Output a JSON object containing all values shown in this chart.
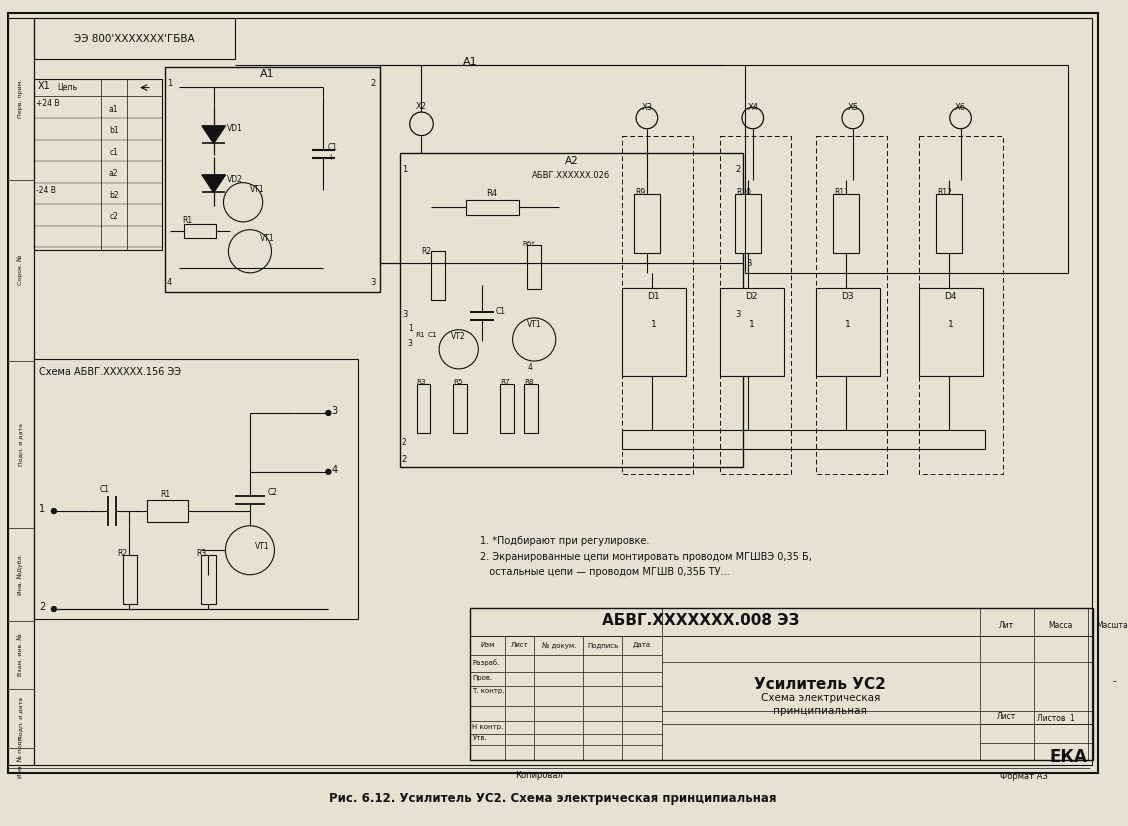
{
  "caption": "Рис. 6.12. Усилитель УС2. Схема электрическая принципиальная",
  "title_doc_number": "АБВГ.XXXXXXX.008 ЭЗ",
  "title_product": "Усилитель УС2",
  "title_doc_type_line1": "Схема электрическая",
  "title_doc_type_line2": "принципиальная",
  "title_company": "ЕКА",
  "title_lit": "Лит",
  "title_massa": "Масса",
  "title_masshtab_label": "Масштаб",
  "title_masshtab_val": "-",
  "title_list": "Лист",
  "title_listov": "Листов  1",
  "title_copied": "Копировал",
  "title_format": "Формат А3",
  "title_izm": "Изм",
  "title_list2": "Лист",
  "title_ndoc": "№ докум.",
  "title_podpis": "Подпись",
  "title_data": "Дата",
  "title_razrab": "Разраб.",
  "title_prov": "Пров.",
  "title_tkont": "Т. контр.",
  "title_nkont": "Н контр.",
  "title_utv": "Утв.",
  "schema_label": "Схема АБВГ.XXXXXX.156 ЭЭ",
  "top_stamp": "ЭЭ 800'XXXXXXX'ГБВА",
  "note1": "1. *Подбирают при регулировке.",
  "note2": "2. Экранированные цепи монтировать проводом МГШВЭ 0,35 Б,",
  "note3": "   остальные цепи — проводом МГШВ 0,35Б ТУ...",
  "bg_color": "#e8e0d0",
  "line_color": "#111111"
}
